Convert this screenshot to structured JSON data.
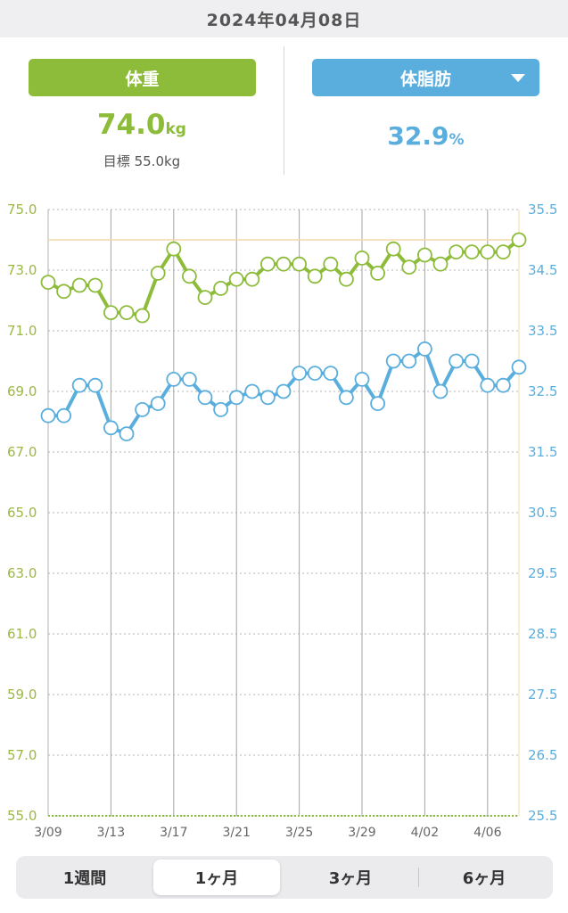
{
  "header": {
    "date": "2024年04月08日"
  },
  "summary": {
    "weight": {
      "label": "体重",
      "value": "74.0",
      "unit": "kg",
      "goal_label": "目標",
      "goal_value": "55.0kg"
    },
    "fat": {
      "label": "体脂肪",
      "value": "32.9",
      "unit": "%",
      "dropdown_icon": "caret-down-icon"
    }
  },
  "tabs": [
    {
      "label": "1週間",
      "active": false
    },
    {
      "label": "1ヶ月",
      "active": true
    },
    {
      "label": "3ヶ月",
      "active": false
    },
    {
      "label": "6ヶ月",
      "active": false
    }
  ],
  "colors": {
    "weight": "#8dbb3a",
    "fat": "#5aaedd",
    "goal_line": "#f3d9a6"
  },
  "chart_data": {
    "type": "line",
    "x": [
      "3/09",
      "3/10",
      "3/11",
      "3/12",
      "3/13",
      "3/14",
      "3/15",
      "3/16",
      "3/17",
      "3/18",
      "3/19",
      "3/20",
      "3/21",
      "3/22",
      "3/23",
      "3/24",
      "3/25",
      "3/26",
      "3/27",
      "3/28",
      "3/29",
      "3/30",
      "3/31",
      "4/01",
      "4/02",
      "4/03",
      "4/04",
      "4/05",
      "4/06",
      "4/07",
      "4/08"
    ],
    "x_tick_labels": [
      "3/09",
      "3/13",
      "3/17",
      "3/21",
      "3/25",
      "3/29",
      "4/02",
      "4/06"
    ],
    "series": [
      {
        "axis": "left",
        "color": "#8dbb3a",
        "values": [
          72.6,
          72.3,
          72.5,
          72.5,
          71.6,
          71.6,
          71.5,
          72.9,
          73.7,
          72.8,
          72.1,
          72.4,
          72.7,
          72.7,
          73.2,
          73.2,
          73.2,
          72.8,
          73.2,
          72.7,
          73.4,
          72.9,
          73.7,
          73.1,
          73.5,
          73.2,
          73.6,
          73.6,
          73.6,
          73.6,
          74.0
        ]
      },
      {
        "axis": "right",
        "color": "#5aaedd",
        "values": [
          32.1,
          32.1,
          32.6,
          32.6,
          31.9,
          31.8,
          32.2,
          32.3,
          32.7,
          32.7,
          32.4,
          32.2,
          32.4,
          32.5,
          32.4,
          32.5,
          32.8,
          32.8,
          32.8,
          32.4,
          32.7,
          32.3,
          33.0,
          33.0,
          33.2,
          32.5,
          33.0,
          33.0,
          32.6,
          32.6,
          32.9
        ]
      }
    ],
    "left_axis": {
      "min": 55.0,
      "max": 75.0,
      "ticks": [
        "75.0",
        "73.0",
        "71.0",
        "69.0",
        "67.0",
        "65.0",
        "63.0",
        "61.0",
        "59.0",
        "57.0",
        "55.0"
      ]
    },
    "right_axis": {
      "min": 25.5,
      "max": 35.5,
      "ticks": [
        "35.5",
        "34.5",
        "33.5",
        "32.5",
        "31.5",
        "30.5",
        "29.5",
        "28.5",
        "27.5",
        "26.5",
        "25.5"
      ]
    },
    "goal_line": {
      "axis": "right",
      "value": 35.0
    }
  }
}
